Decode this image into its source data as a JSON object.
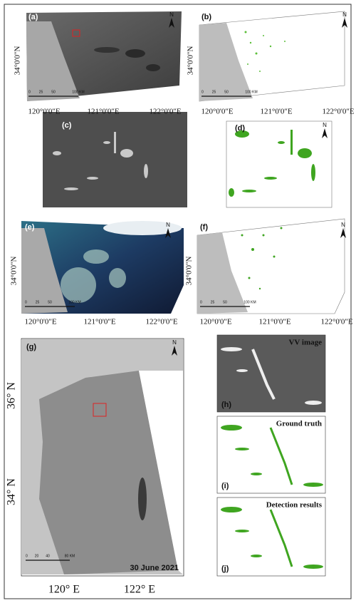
{
  "panels": {
    "a": {
      "label": "(a)",
      "north": "N",
      "latitude": "34°0'0\"N",
      "longitudes": [
        "120°0'0\"E",
        "121°0'0\"E",
        "122°0'0\"E"
      ],
      "scale": [
        "0",
        "25",
        "50",
        "100 KM"
      ]
    },
    "b": {
      "label": "(b)",
      "north": "N",
      "latitude": "34°0'0\"N",
      "longitudes": [
        "120°0'0\"E",
        "121°0'0\"E",
        "122°0'0\"E"
      ],
      "scale": [
        "0",
        "25",
        "50",
        "100 KM"
      ]
    },
    "c": {
      "label": "(c)"
    },
    "d": {
      "label": "(d)",
      "north": "N"
    },
    "e": {
      "label": "(e)",
      "north": "N",
      "latitude": "34°0'0\"N",
      "longitudes": [
        "120°0'0\"E",
        "121°0'0\"E",
        "122°0'0\"E"
      ],
      "scale": [
        "0",
        "25",
        "50",
        "100 KM"
      ]
    },
    "f": {
      "label": "(f)",
      "north": "N",
      "latitude": "34°0'0\"N",
      "longitudes": [
        "120°0'0\"E",
        "121°0'0\"E",
        "122°0'0\"E"
      ],
      "scale": [
        "0",
        "25",
        "50",
        "100 KM"
      ]
    },
    "g": {
      "label": "(g)",
      "north": "N",
      "latitudes": [
        "36° N",
        "34° N"
      ],
      "longitudes": [
        "120° E",
        "122° E"
      ],
      "scale": [
        "0",
        "20",
        "40",
        "80 KM"
      ],
      "date": "30 June 2021"
    },
    "h": {
      "label": "(h)",
      "title": "VV image"
    },
    "i": {
      "label": "(i)",
      "title": "Ground truth"
    },
    "j": {
      "label": "(j)",
      "title": "Detection results"
    }
  }
}
